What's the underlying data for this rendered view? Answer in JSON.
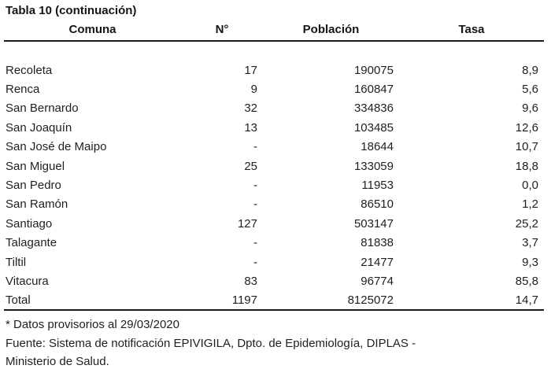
{
  "title": "Tabla 10 (continuación)",
  "table": {
    "columns": [
      "Comuna",
      "N°",
      "Población",
      "Tasa"
    ],
    "rows": [
      {
        "comuna": "Recoleta",
        "n": "17",
        "poblacion": "190075",
        "tasa": "8,9"
      },
      {
        "comuna": "Renca",
        "n": "9",
        "poblacion": "160847",
        "tasa": "5,6"
      },
      {
        "comuna": "San Bernardo",
        "n": "32",
        "poblacion": "334836",
        "tasa": "9,6"
      },
      {
        "comuna": "San Joaquín",
        "n": "13",
        "poblacion": "103485",
        "tasa": "12,6"
      },
      {
        "comuna": "San José de Maipo",
        "n": "-",
        "poblacion": "18644",
        "tasa": "10,7"
      },
      {
        "comuna": "San Miguel",
        "n": "25",
        "poblacion": "133059",
        "tasa": "18,8"
      },
      {
        "comuna": "San Pedro",
        "n": "-",
        "poblacion": "11953",
        "tasa": "0,0"
      },
      {
        "comuna": "San Ramón",
        "n": "-",
        "poblacion": "86510",
        "tasa": "1,2"
      },
      {
        "comuna": "Santiago",
        "n": "127",
        "poblacion": "503147",
        "tasa": "25,2"
      },
      {
        "comuna": "Talagante",
        "n": "-",
        "poblacion": "81838",
        "tasa": "3,7"
      },
      {
        "comuna": "Tiltil",
        "n": "-",
        "poblacion": "21477",
        "tasa": "9,3"
      },
      {
        "comuna": "Vitacura",
        "n": "83",
        "poblacion": "96774",
        "tasa": "85,8"
      },
      {
        "comuna": "Total",
        "n": "1197",
        "poblacion": "8125072",
        "tasa": "14,7"
      }
    ]
  },
  "footnotes": [
    "* Datos provisorios al 29/03/2020",
    "Fuente: Sistema de notificación EPIVIGILA, Dpto. de Epidemiología, DIPLAS -",
    "Ministerio de Salud."
  ]
}
